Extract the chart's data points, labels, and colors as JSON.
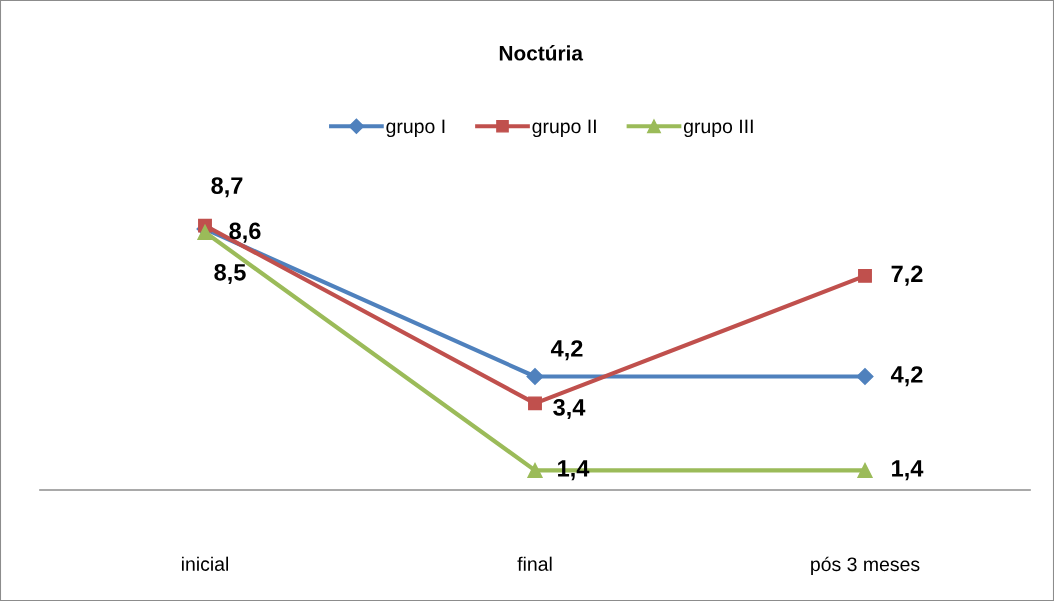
{
  "chart_data": {
    "type": "line",
    "title": "Noctúria",
    "categories": [
      "inicial",
      "final",
      "pós 3 meses"
    ],
    "series": [
      {
        "name": "grupo I",
        "color": "#4f81bd",
        "marker": "diamond",
        "values": [
          8.6,
          4.2,
          4.2
        ],
        "value_labels": [
          "8,6",
          "4,2",
          "4,2"
        ]
      },
      {
        "name": "grupo II",
        "color": "#c0504d",
        "marker": "square",
        "values": [
          8.7,
          3.4,
          7.2
        ],
        "value_labels": [
          "8,7",
          "3,4",
          "7,2"
        ]
      },
      {
        "name": "grupo III",
        "color": "#9bbb59",
        "marker": "triangle",
        "values": [
          8.5,
          1.4,
          1.4
        ],
        "value_labels": [
          "8,5",
          "1,4",
          "1,4"
        ]
      }
    ],
    "legend": "top",
    "grid": false,
    "tick_labels": "x",
    "line_style": "solid"
  }
}
